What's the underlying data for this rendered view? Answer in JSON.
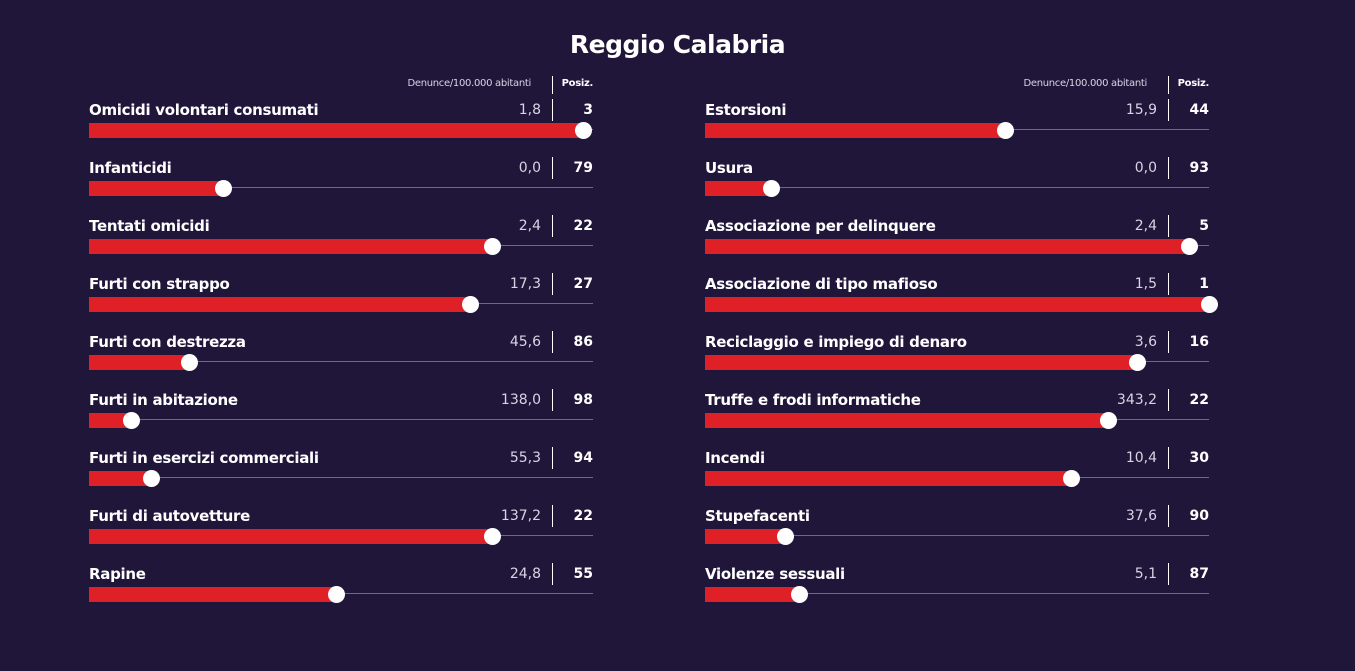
{
  "title": "Reggio Calabria",
  "colors": {
    "background": "#20163a",
    "bar": "#e02027",
    "knob": "#ffffff",
    "track": "#6e6890"
  },
  "chart_data": {
    "type": "bar",
    "title": "Reggio Calabria",
    "value_header": "Denunce/100.000 abitanti",
    "rank_header": "Posiz.",
    "columns": [
      {
        "rows": [
          {
            "label": "Omicidi volontari consumati",
            "value": "1,8",
            "rank": "3",
            "bar_fraction": 0.98
          },
          {
            "label": "Infanticidi",
            "value": "0,0",
            "rank": "79",
            "bar_fraction": 0.265
          },
          {
            "label": "Tentati omicidi",
            "value": "2,4",
            "rank": "22",
            "bar_fraction": 0.8
          },
          {
            "label": "Furti con strappo",
            "value": "17,3",
            "rank": "27",
            "bar_fraction": 0.755
          },
          {
            "label": "Furti con destrezza",
            "value": "45,6",
            "rank": "86",
            "bar_fraction": 0.198
          },
          {
            "label": "Furti in abitazione",
            "value": "138,0",
            "rank": "98",
            "bar_fraction": 0.083
          },
          {
            "label": "Furti in esercizi commerciali",
            "value": "55,3",
            "rank": "94",
            "bar_fraction": 0.123
          },
          {
            "label": "Furti di autovetture",
            "value": "137,2",
            "rank": "22",
            "bar_fraction": 0.8
          },
          {
            "label": "Rapine",
            "value": "24,8",
            "rank": "55",
            "bar_fraction": 0.49
          }
        ]
      },
      {
        "rows": [
          {
            "label": "Estorsioni",
            "value": "15,9",
            "rank": "44",
            "bar_fraction": 0.595
          },
          {
            "label": "Usura",
            "value": "0,0",
            "rank": "93",
            "bar_fraction": 0.131
          },
          {
            "label": "Associazione per delinquere",
            "value": "2,4",
            "rank": "5",
            "bar_fraction": 0.96
          },
          {
            "label": "Associazione di tipo mafioso",
            "value": "1,5",
            "rank": "1",
            "bar_fraction": 1.0
          },
          {
            "label": "Reciclaggio e impiego di denaro",
            "value": "3,6",
            "rank": "16",
            "bar_fraction": 0.857
          },
          {
            "label": "Truffe e frodi informatiche",
            "value": "343,2",
            "rank": "22",
            "bar_fraction": 0.8
          },
          {
            "label": "Incendi",
            "value": "10,4",
            "rank": "30",
            "bar_fraction": 0.726
          },
          {
            "label": "Stupefacenti",
            "value": "37,6",
            "rank": "90",
            "bar_fraction": 0.159
          },
          {
            "label": "Violenze sessuali",
            "value": "5,1",
            "rank": "87",
            "bar_fraction": 0.187
          }
        ]
      }
    ]
  }
}
